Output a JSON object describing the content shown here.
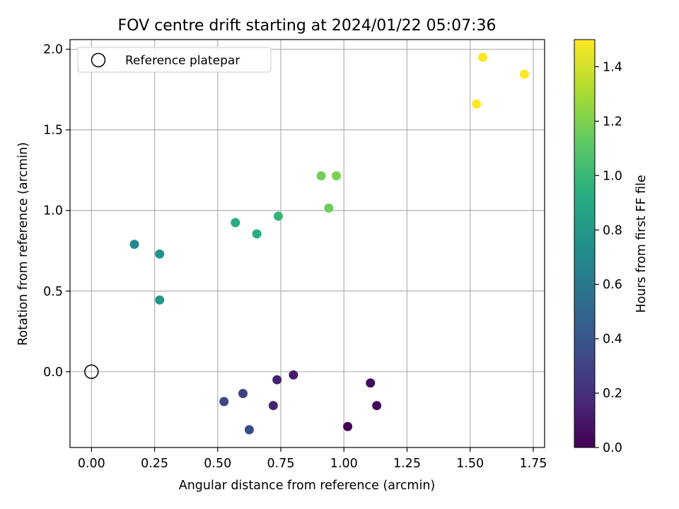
{
  "chart_data": {
    "type": "scatter",
    "title": "FOV centre drift starting at 2024/01/22 05:07:36",
    "xlabel": "Angular distance from reference (arcmin)",
    "ylabel": "Rotation from reference (arcmin)",
    "xlim": [
      -0.085,
      1.795
    ],
    "ylim": [
      -0.47,
      2.06
    ],
    "xticks": [
      0.0,
      0.25,
      0.5,
      0.75,
      1.0,
      1.25,
      1.5,
      1.75
    ],
    "xtick_labels": [
      "0.00",
      "0.25",
      "0.50",
      "0.75",
      "1.00",
      "1.25",
      "1.50",
      "1.75"
    ],
    "yticks": [
      0.0,
      0.5,
      1.0,
      1.5,
      2.0
    ],
    "ytick_labels": [
      "0.0",
      "0.5",
      "1.0",
      "1.5",
      "2.0"
    ],
    "grid": true,
    "legend": {
      "label": "Reference platepar",
      "placement": "upper-left"
    },
    "reference_point": {
      "x": 0.0,
      "y": 0.0
    },
    "colorbar": {
      "label": "Hours from first FF file",
      "colormap": "viridis",
      "range": [
        0.0,
        1.5
      ],
      "ticks": [
        0.0,
        0.2,
        0.4,
        0.6,
        0.8,
        1.0,
        1.2,
        1.4
      ],
      "tick_labels": [
        "0.0",
        "0.2",
        "0.4",
        "0.6",
        "0.8",
        "1.0",
        "1.2",
        "1.4"
      ]
    },
    "points": [
      {
        "x": 1.015,
        "y": -0.34,
        "hours": 0.0
      },
      {
        "x": 1.13,
        "y": -0.21,
        "hours": 0.03
      },
      {
        "x": 1.105,
        "y": -0.07,
        "hours": 0.05
      },
      {
        "x": 0.8,
        "y": -0.02,
        "hours": 0.12
      },
      {
        "x": 0.735,
        "y": -0.05,
        "hours": 0.15
      },
      {
        "x": 0.72,
        "y": -0.21,
        "hours": 0.15
      },
      {
        "x": 0.6,
        "y": -0.135,
        "hours": 0.3
      },
      {
        "x": 0.525,
        "y": -0.185,
        "hours": 0.32
      },
      {
        "x": 0.625,
        "y": -0.36,
        "hours": 0.34
      },
      {
        "x": 0.27,
        "y": 0.445,
        "hours": 0.8
      },
      {
        "x": 0.17,
        "y": 0.79,
        "hours": 0.7
      },
      {
        "x": 0.27,
        "y": 0.73,
        "hours": 0.76
      },
      {
        "x": 0.57,
        "y": 0.925,
        "hours": 0.92
      },
      {
        "x": 0.655,
        "y": 0.855,
        "hours": 0.94
      },
      {
        "x": 0.74,
        "y": 0.965,
        "hours": 0.98
      },
      {
        "x": 0.94,
        "y": 1.015,
        "hours": 1.16
      },
      {
        "x": 0.91,
        "y": 1.215,
        "hours": 1.18
      },
      {
        "x": 0.97,
        "y": 1.215,
        "hours": 1.2
      },
      {
        "x": 1.525,
        "y": 1.66,
        "hours": 1.5
      },
      {
        "x": 1.55,
        "y": 1.95,
        "hours": 1.5
      },
      {
        "x": 1.715,
        "y": 1.845,
        "hours": 1.5
      }
    ]
  }
}
